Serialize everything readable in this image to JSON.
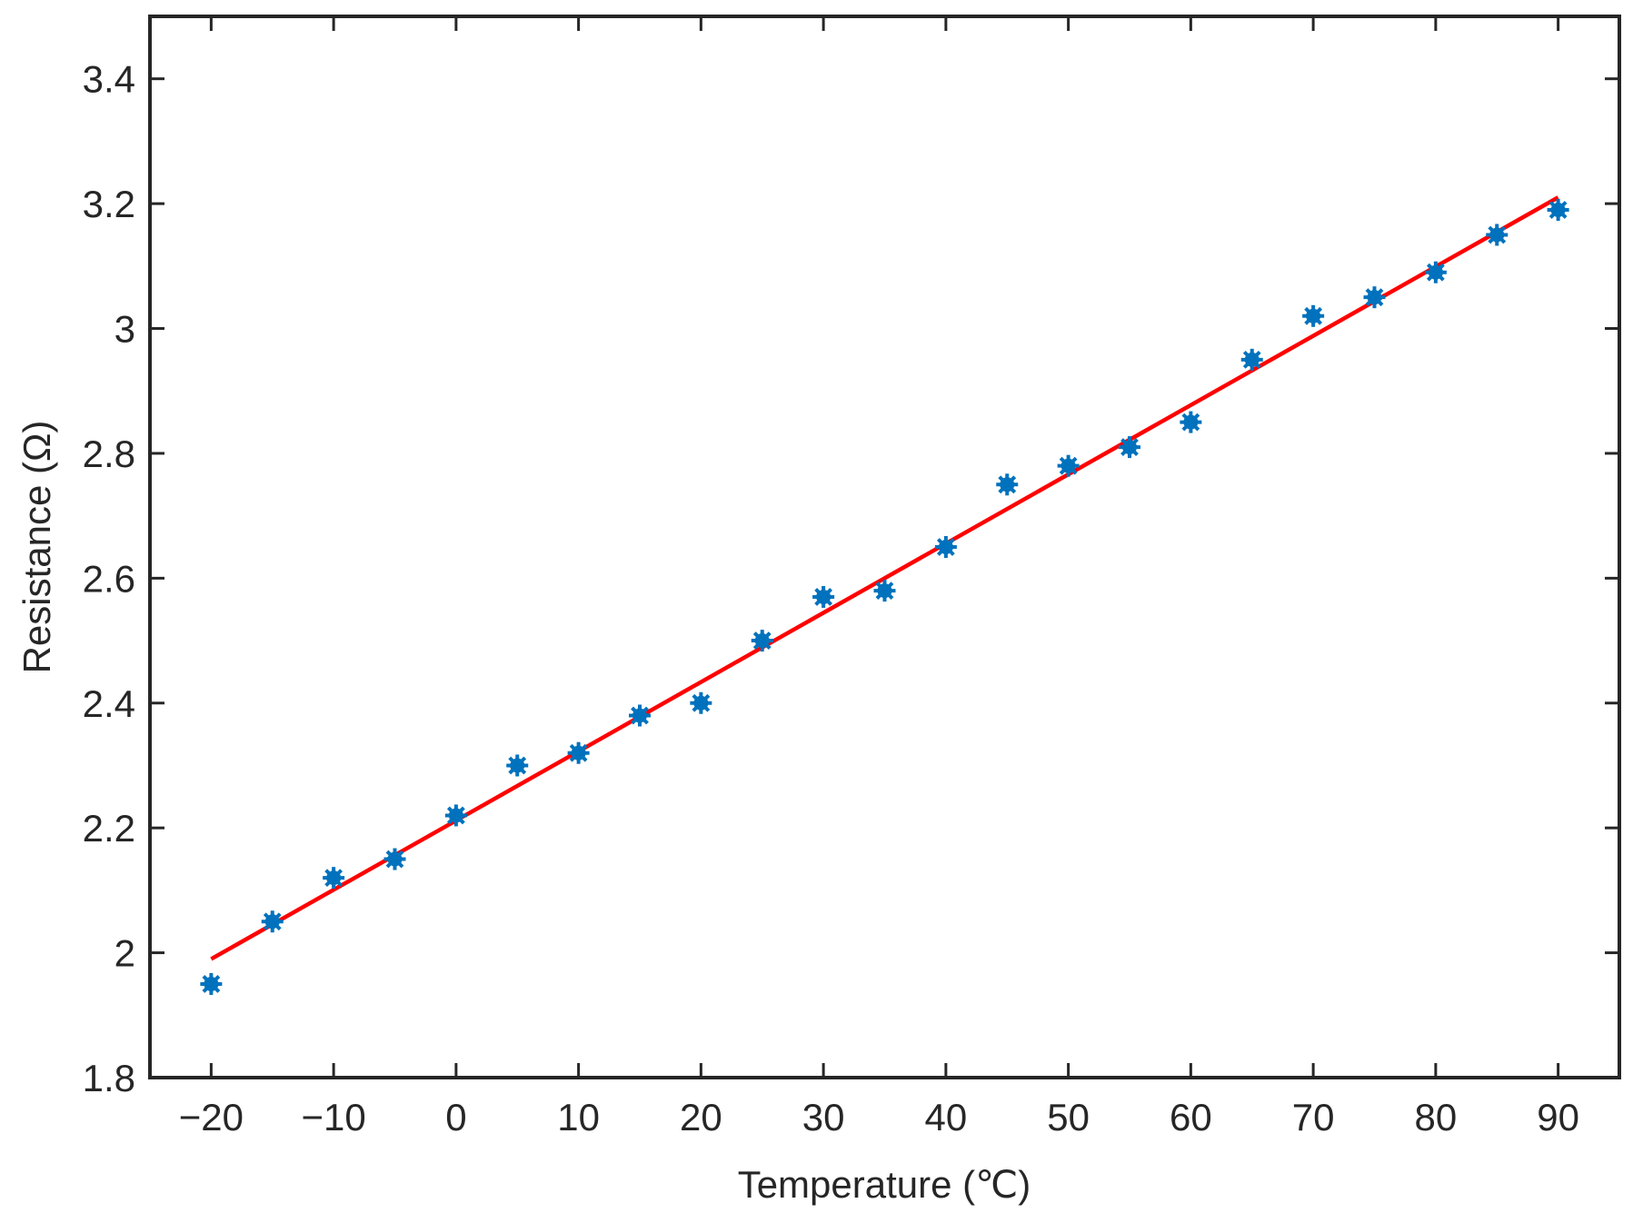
{
  "chart_data": {
    "type": "scatter",
    "title": "",
    "xlabel": "Temperature (℃)",
    "ylabel": "Resistance (Ω)",
    "xlim": [
      -25,
      95
    ],
    "ylim": [
      1.8,
      3.5
    ],
    "x_ticks": [
      -20,
      -10,
      0,
      10,
      20,
      30,
      40,
      50,
      60,
      70,
      80,
      90
    ],
    "x_tick_labels": [
      "−20",
      "−10",
      "0",
      "10",
      "20",
      "30",
      "40",
      "50",
      "60",
      "70",
      "80",
      "90"
    ],
    "y_ticks": [
      1.8,
      2.0,
      2.2,
      2.4,
      2.6,
      2.8,
      3.0,
      3.2,
      3.4
    ],
    "y_tick_labels": [
      "1.8",
      "2",
      "2.2",
      "2.4",
      "2.6",
      "2.8",
      "3",
      "3.2",
      "3.4"
    ],
    "grid": false,
    "legend": "none",
    "series": [
      {
        "kind": "scatter",
        "marker": "asterisk",
        "color": "#0072BD",
        "x": [
          -20,
          -15,
          -10,
          -5,
          0,
          5,
          10,
          15,
          20,
          25,
          30,
          35,
          40,
          45,
          50,
          55,
          60,
          65,
          70,
          75,
          80,
          85,
          90
        ],
        "y": [
          1.95,
          2.05,
          2.12,
          2.15,
          2.22,
          2.3,
          2.32,
          2.38,
          2.4,
          2.5,
          2.57,
          2.58,
          2.65,
          2.75,
          2.78,
          2.81,
          2.85,
          2.95,
          3.02,
          3.05,
          3.09,
          3.15,
          3.19
        ]
      },
      {
        "kind": "line",
        "color": "#FF0000",
        "x": [
          -20,
          90
        ],
        "y": [
          1.99,
          3.21
        ]
      }
    ]
  }
}
